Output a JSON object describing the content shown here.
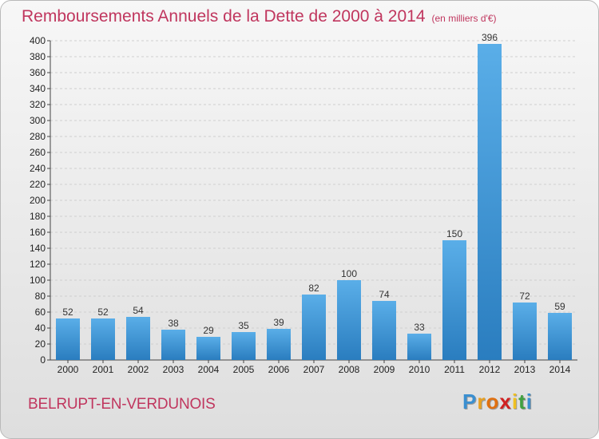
{
  "header": {
    "title": "Remboursements Annuels de la Dette de 2000 à 2014",
    "unit": "(en milliers d'€)"
  },
  "footer": {
    "commune": "BELRUPT-EN-VERDUNOIS",
    "logo": [
      "P",
      "r",
      "o",
      "x",
      "i",
      "t",
      "i"
    ]
  },
  "colors": {
    "title": "#c0365e",
    "bar_light": "#5aaee8",
    "bar_dark": "#2a7dbf",
    "logo": [
      "#3a8fd0",
      "#e8a020",
      "#e07010",
      "#d02020",
      "#f0c020",
      "#40a040",
      "#3a8fd0"
    ]
  },
  "chart_data": {
    "type": "bar",
    "categories": [
      "2000",
      "2001",
      "2002",
      "2003",
      "2004",
      "2005",
      "2006",
      "2007",
      "2008",
      "2009",
      "2010",
      "2011",
      "2012",
      "2013",
      "2014"
    ],
    "values": [
      52,
      52,
      54,
      38,
      29,
      35,
      39,
      82,
      100,
      74,
      33,
      150,
      396,
      72,
      59
    ],
    "ylim": [
      0,
      400
    ],
    "yticks": [
      0,
      20,
      40,
      60,
      80,
      100,
      120,
      140,
      160,
      180,
      200,
      220,
      240,
      260,
      280,
      300,
      320,
      340,
      360,
      380,
      400
    ],
    "grid": true
  }
}
